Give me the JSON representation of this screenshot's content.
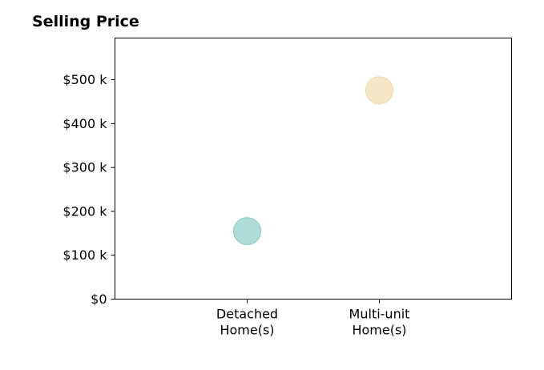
{
  "chart_data": {
    "type": "scatter",
    "title": "Selling Price",
    "xlabel": "",
    "ylabel": "",
    "categories": [
      [
        "Detached",
        "Home(s)"
      ],
      [
        "Multi-unit",
        "Home(s)"
      ]
    ],
    "points": [
      {
        "category": 0,
        "value": 155,
        "color": "#b0dcd8",
        "edge": "#8ccbc6"
      },
      {
        "category": 1,
        "value": 476,
        "color": "#f7e6c6",
        "edge": "#f0d8ac"
      }
    ],
    "yticks": [
      0,
      100,
      200,
      300,
      400,
      500
    ],
    "ytick_labels": [
      "$0",
      "$100 k",
      "$200 k",
      "$300 k",
      "$400 k",
      "$500 k"
    ],
    "ylim": [
      0,
      595
    ],
    "xlim": [
      -1,
      2
    ],
    "grid": false,
    "legend": "none"
  }
}
